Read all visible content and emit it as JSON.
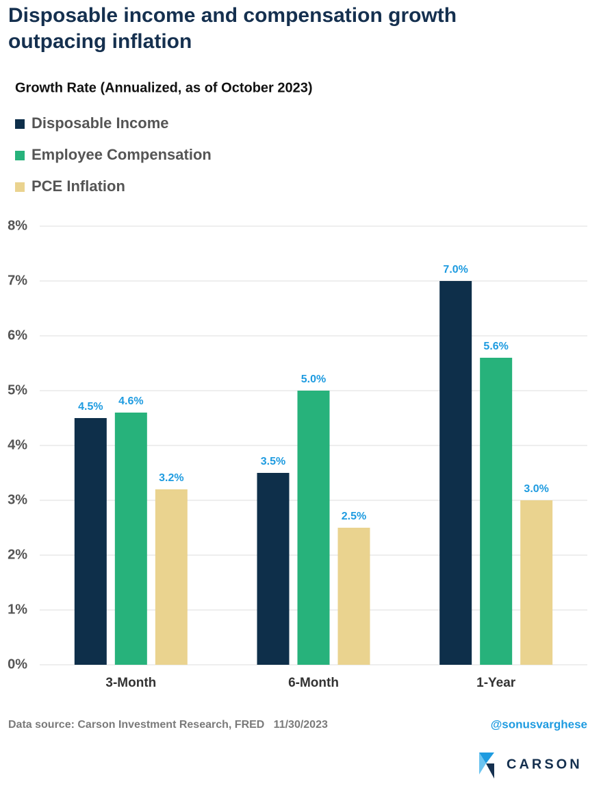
{
  "chart_data": {
    "type": "bar",
    "title_lines": [
      "Disposable income and compensation growth",
      "outpacing inflation"
    ],
    "subtitle": "Growth Rate (Annualized, as of October 2023)",
    "categories": [
      "3-Month",
      "6-Month",
      "1-Year"
    ],
    "series": [
      {
        "name": "Disposable Income",
        "color": "#0e2f4a",
        "values": [
          4.5,
          3.5,
          7.0
        ],
        "value_labels": [
          "4.5%",
          "3.5%",
          "7.0%"
        ]
      },
      {
        "name": "Employee Compensation",
        "color": "#27b27b",
        "values": [
          4.6,
          5.0,
          5.6
        ],
        "value_labels": [
          "4.6%",
          "5.0%",
          "5.6%"
        ]
      },
      {
        "name": "PCE Inflation",
        "color": "#ead38f",
        "values": [
          3.2,
          2.5,
          3.0
        ],
        "value_labels": [
          "3.2%",
          "2.5%",
          "3.0%"
        ]
      }
    ],
    "ylim": [
      0,
      8
    ],
    "yticks": [
      {
        "value": 0,
        "label": "0%"
      },
      {
        "value": 1,
        "label": "1%"
      },
      {
        "value": 2,
        "label": "2%"
      },
      {
        "value": 3,
        "label": "3%"
      },
      {
        "value": 4,
        "label": "4%"
      },
      {
        "value": 5,
        "label": "5%"
      },
      {
        "value": 6,
        "label": "6%"
      },
      {
        "value": 7,
        "label": "7%"
      },
      {
        "value": 8,
        "label": "8%"
      }
    ],
    "grid": true,
    "source": "Data source: Carson Investment Research, FRED   11/30/2023",
    "handle": "@sonusvarghese",
    "logo_text": "CARSON"
  }
}
